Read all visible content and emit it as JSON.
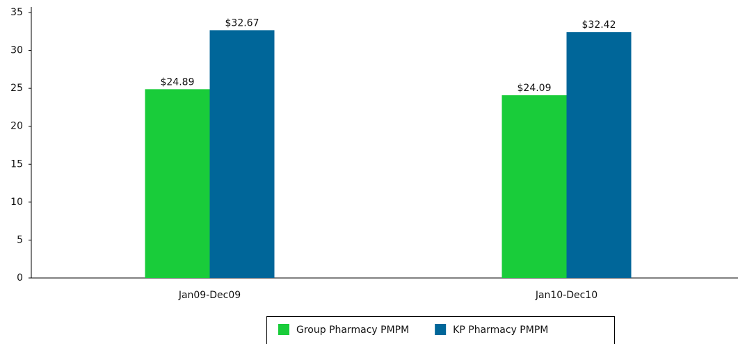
{
  "chart_data": {
    "type": "bar",
    "categories": [
      "Jan09-Dec09",
      "Jan10-Dec10"
    ],
    "series": [
      {
        "name": "Group Pharmacy PMPM",
        "color": "#19cc3a",
        "values": [
          24.89,
          24.09
        ],
        "value_labels": [
          "$24.89",
          "$24.09"
        ]
      },
      {
        "name": "KP Pharmacy PMPM",
        "color": "#006699",
        "values": [
          32.67,
          32.42
        ],
        "value_labels": [
          "$32.67",
          "$32.42"
        ]
      }
    ],
    "ylim": [
      0,
      35
    ],
    "yticks": [
      0,
      5,
      10,
      15,
      20,
      25,
      30,
      35
    ],
    "grid": false,
    "legend": "bottom"
  }
}
